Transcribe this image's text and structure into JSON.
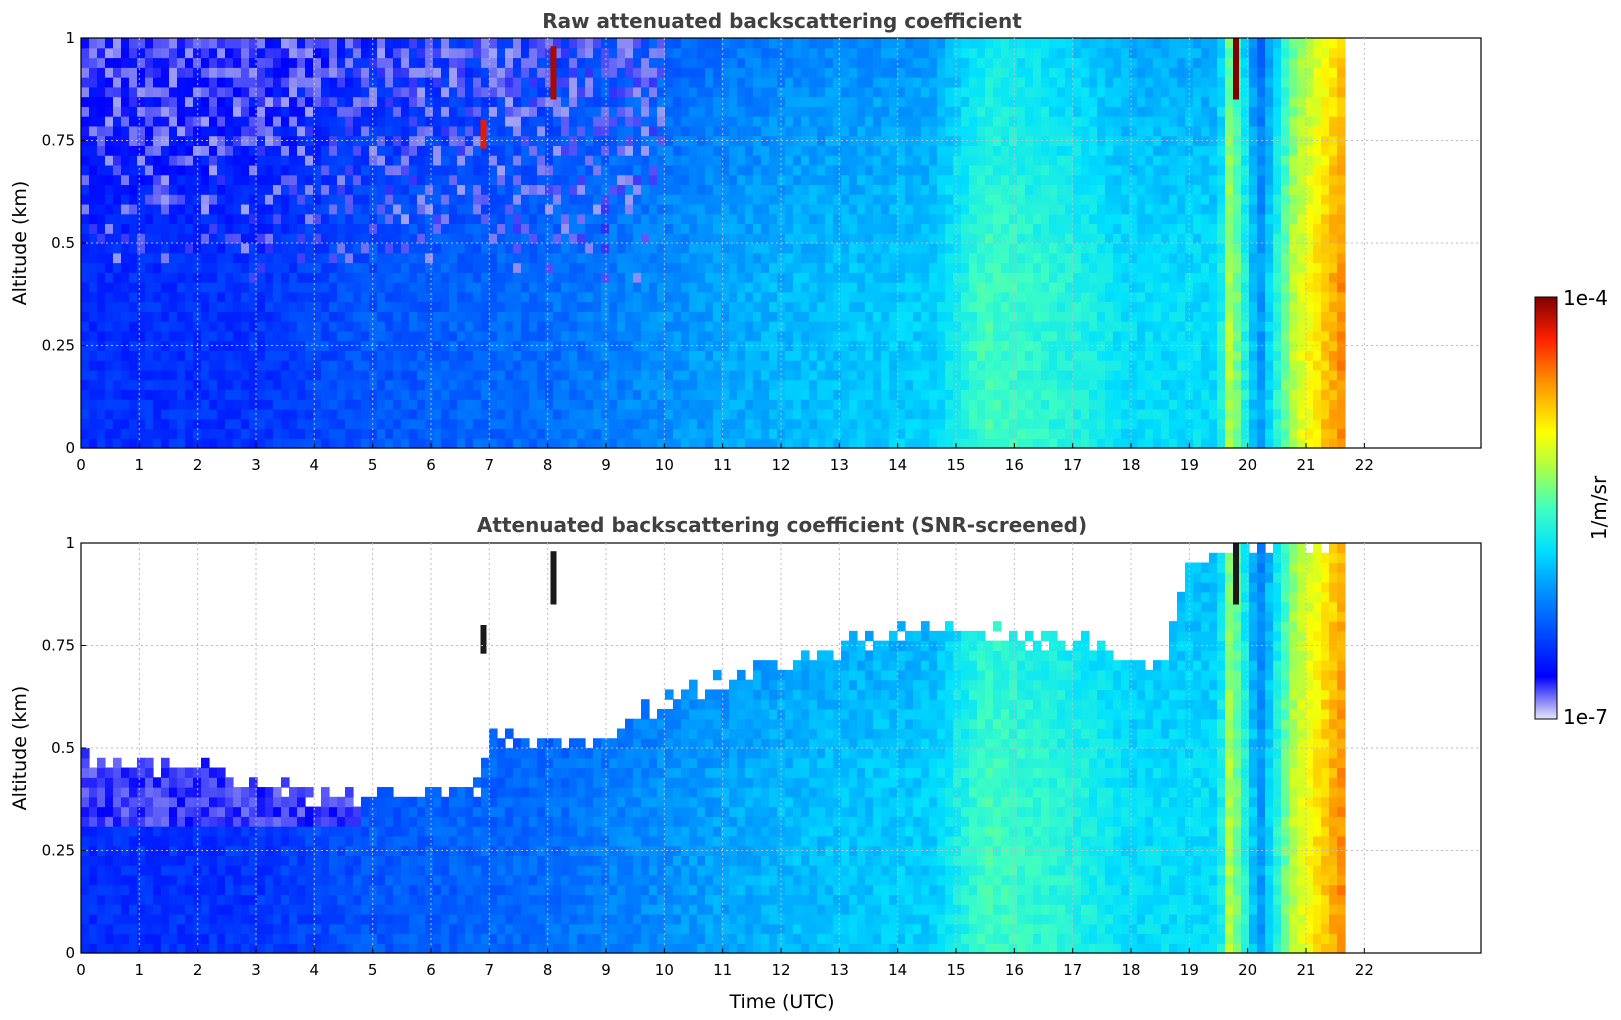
{
  "chart_data": [
    {
      "type": "heatmap",
      "title": "Raw attenuated backscattering coefficient",
      "xlabel": "",
      "ylabel": "Altitude (km)",
      "xlim": [
        0,
        24
      ],
      "ylim": [
        0,
        1
      ],
      "xticks": [
        "0",
        "1",
        "2",
        "3",
        "4",
        "5",
        "6",
        "7",
        "8",
        "9",
        "10",
        "11",
        "12",
        "13",
        "14",
        "15",
        "16",
        "17",
        "18",
        "19",
        "20",
        "21",
        "22"
      ],
      "yticks": [
        "0",
        "0.25",
        "0.5",
        "0.75",
        "1"
      ],
      "grid": true,
      "screened": false,
      "data_end_hour": 21.65,
      "value_profile": [
        {
          "t": 0,
          "v": 0.16
        },
        {
          "t": 3,
          "v": 0.17
        },
        {
          "t": 5,
          "v": 0.22
        },
        {
          "t": 8,
          "v": 0.25
        },
        {
          "t": 10,
          "v": 0.3
        },
        {
          "t": 12,
          "v": 0.35
        },
        {
          "t": 14.6,
          "v": 0.38
        },
        {
          "t": 15.5,
          "v": 0.5
        },
        {
          "t": 16.5,
          "v": 0.47
        },
        {
          "t": 17.1,
          "v": 0.45
        },
        {
          "t": 18,
          "v": 0.4
        },
        {
          "t": 19.5,
          "v": 0.4
        },
        {
          "t": 19.7,
          "v": 0.62
        },
        {
          "t": 20.2,
          "v": 0.3
        },
        {
          "t": 20.8,
          "v": 0.62
        },
        {
          "t": 21.6,
          "v": 0.8
        }
      ],
      "high_features": [
        {
          "t": 8.1,
          "alt": [
            0.85,
            0.98
          ],
          "level": 0.97
        },
        {
          "t": 6.9,
          "alt": [
            0.73,
            0.8
          ],
          "level": 0.92
        },
        {
          "t": 19.8,
          "alt": [
            0.85,
            1.0
          ],
          "level": 1.0
        }
      ]
    },
    {
      "type": "heatmap",
      "title": "Attenuated backscattering coefficient (SNR-screened)",
      "xlabel": "Time (UTC)",
      "ylabel": "Altitude (km)",
      "xlim": [
        0,
        24
      ],
      "ylim": [
        0,
        1
      ],
      "xticks": [
        "0",
        "1",
        "2",
        "3",
        "4",
        "5",
        "6",
        "7",
        "8",
        "9",
        "10",
        "11",
        "12",
        "13",
        "14",
        "15",
        "16",
        "17",
        "18",
        "19",
        "20",
        "21",
        "22"
      ],
      "yticks": [
        "0",
        "0.25",
        "0.5",
        "0.75",
        "1"
      ],
      "grid": true,
      "screened": true,
      "data_end_hour": 21.65,
      "screen_top_km": [
        {
          "t": 0,
          "alt": 0.48
        },
        {
          "t": 2,
          "alt": 0.45
        },
        {
          "t": 3.5,
          "alt": 0.4
        },
        {
          "t": 5,
          "alt": 0.37
        },
        {
          "t": 6.8,
          "alt": 0.4
        },
        {
          "t": 7,
          "alt": 0.52
        },
        {
          "t": 9,
          "alt": 0.52
        },
        {
          "t": 10,
          "alt": 0.62
        },
        {
          "t": 12,
          "alt": 0.7
        },
        {
          "t": 14.5,
          "alt": 0.8
        },
        {
          "t": 17,
          "alt": 0.76
        },
        {
          "t": 18.5,
          "alt": 0.7
        },
        {
          "t": 19,
          "alt": 0.95
        },
        {
          "t": 20,
          "alt": 1.0
        },
        {
          "t": 21.65,
          "alt": 1.0
        }
      ]
    }
  ],
  "colorbar": {
    "label": "1/m/sr",
    "max_label": "1e-4",
    "min_label": "1e-7",
    "colormap": "jet"
  },
  "colors": {
    "axis": "#000000",
    "title": "#404040",
    "grid": "#bdbdbd"
  }
}
